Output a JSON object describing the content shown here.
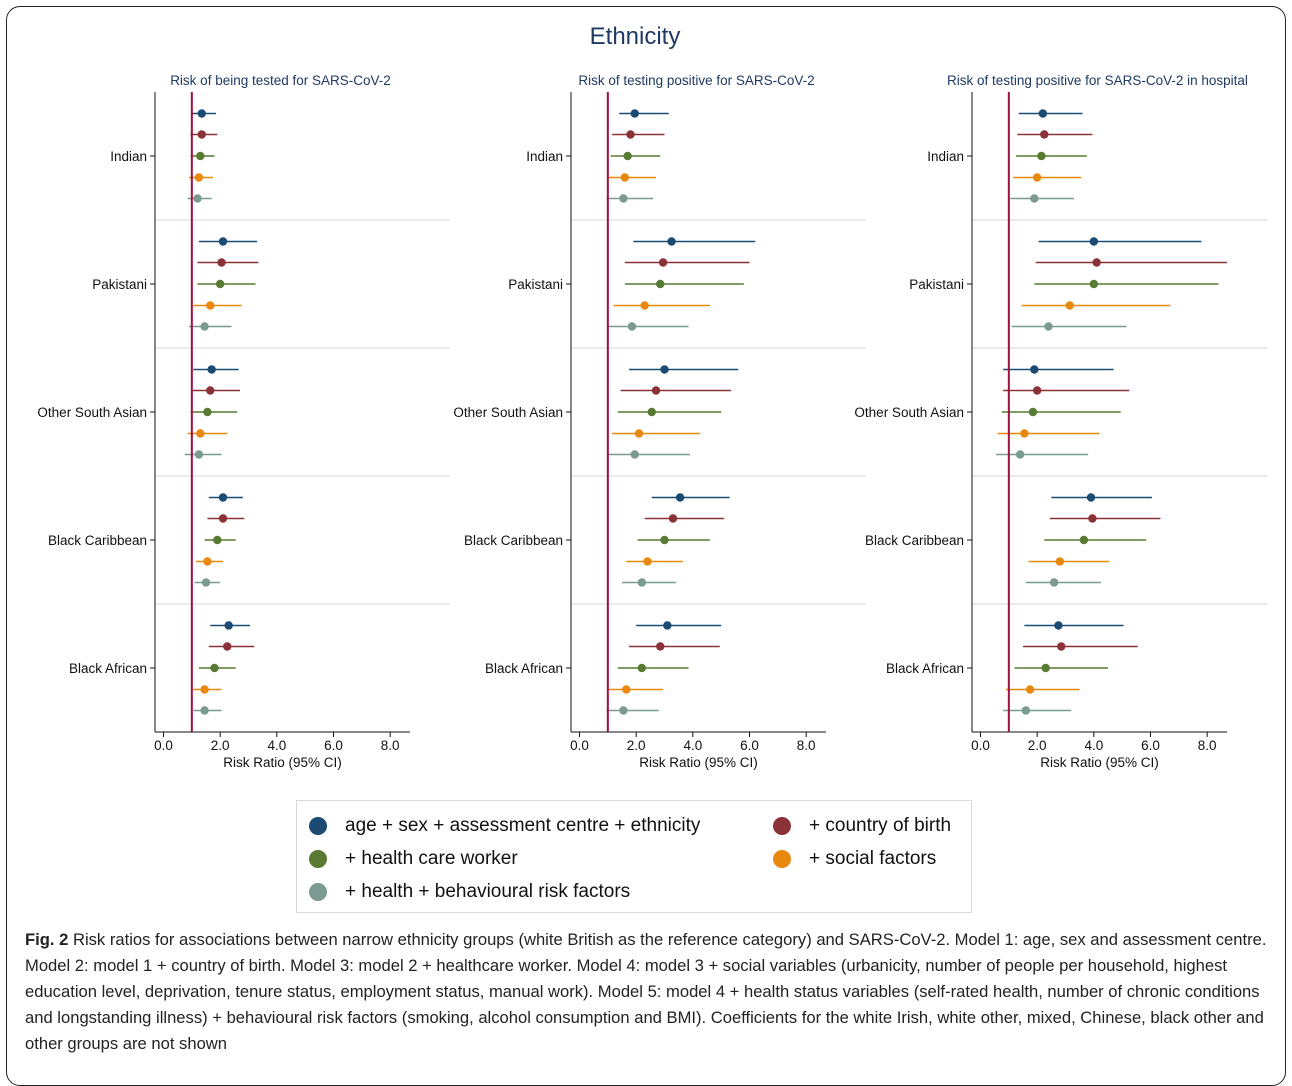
{
  "figure_title": "Ethnicity",
  "colors": {
    "model1": "#1b4a73",
    "model2": "#8b3238",
    "model3": "#587a32",
    "model4": "#e8890e",
    "model5": "#7b9a92",
    "reference_line": "#a0103f",
    "title_text": "#1f3a63"
  },
  "legend": {
    "model1": "age + sex + assessment centre + ethnicity",
    "model2": "+ country of birth",
    "model3": "+ health care worker",
    "model4": "+ social factors",
    "model5": "+ health + behavioural risk factors"
  },
  "caption": {
    "label": "Fig. 2",
    "text": "Risk ratios for associations between narrow ethnicity groups (white British as the reference category) and SARS-CoV-2. Model 1: age, sex and assessment centre. Model 2: model 1 + country of birth. Model 3: model 2 + healthcare worker. Model 4: model 3 + social variables (urbanicity, number of people per household, highest education level, deprivation, tenure status, employment status, manual work). Model 5: model 4 + health status variables (self-rated health, number of chronic conditions and longstanding illness) + behavioural risk factors (smoking, alcohol consumption and BMI). Coefficients for the white Irish, white other, mixed, Chinese, black other and other groups are not shown"
  },
  "chart_data": [
    {
      "type": "forest",
      "title": "Risk of being tested for SARS-CoV-2",
      "xlabel": "Risk Ratio (95% CI)",
      "xlim": [
        -0.3,
        8.7
      ],
      "xticks": [
        "0.0",
        "2.0",
        "4.0",
        "6.0",
        "8.0"
      ],
      "reference_line": 1.0,
      "categories": [
        "Indian",
        "Pakistani",
        "Other South Asian",
        "Black Caribbean",
        "Black African"
      ],
      "series": [
        {
          "name": "age + sex + assessment centre + ethnicity",
          "est": [
            1.35,
            2.1,
            1.7,
            2.1,
            2.3
          ],
          "lo": [
            1.0,
            1.25,
            1.05,
            1.6,
            1.65
          ],
          "hi": [
            1.85,
            3.3,
            2.65,
            2.8,
            3.05
          ]
        },
        {
          "name": "+ country of birth",
          "est": [
            1.35,
            2.05,
            1.65,
            2.1,
            2.25
          ],
          "lo": [
            0.95,
            1.2,
            1.0,
            1.55,
            1.6
          ],
          "hi": [
            1.9,
            3.35,
            2.7,
            2.85,
            3.2
          ]
        },
        {
          "name": "+ health care worker",
          "est": [
            1.3,
            2.0,
            1.55,
            1.9,
            1.8
          ],
          "lo": [
            0.95,
            1.2,
            0.95,
            1.45,
            1.25
          ],
          "hi": [
            1.8,
            3.25,
            2.6,
            2.55,
            2.55
          ]
        },
        {
          "name": "+ social factors",
          "est": [
            1.25,
            1.65,
            1.3,
            1.55,
            1.45
          ],
          "lo": [
            0.9,
            1.05,
            0.85,
            1.15,
            1.05
          ],
          "hi": [
            1.75,
            2.75,
            2.25,
            2.1,
            2.05
          ]
        },
        {
          "name": "+ health + behavioural risk factors",
          "est": [
            1.2,
            1.45,
            1.25,
            1.5,
            1.45
          ],
          "lo": [
            0.85,
            0.9,
            0.75,
            1.1,
            1.05
          ],
          "hi": [
            1.7,
            2.4,
            2.05,
            2.0,
            2.05
          ]
        }
      ]
    },
    {
      "type": "forest",
      "title": "Risk of testing positive for SARS-CoV-2",
      "xlabel": "Risk Ratio (95% CI)",
      "xlim": [
        -0.3,
        8.7
      ],
      "xticks": [
        "0.0",
        "2.0",
        "4.0",
        "6.0",
        "8.0"
      ],
      "reference_line": 1.0,
      "categories": [
        "Indian",
        "Pakistani",
        "Other South Asian",
        "Black Caribbean",
        "Black African"
      ],
      "series": [
        {
          "name": "age + sex + assessment centre + ethnicity",
          "est": [
            1.95,
            3.25,
            3.0,
            3.55,
            3.1
          ],
          "lo": [
            1.4,
            1.9,
            1.75,
            2.55,
            2.0
          ],
          "hi": [
            3.15,
            6.2,
            5.6,
            5.3,
            5.0
          ]
        },
        {
          "name": "+ country of birth",
          "est": [
            1.8,
            2.95,
            2.7,
            3.3,
            2.85
          ],
          "lo": [
            1.15,
            1.6,
            1.45,
            2.3,
            1.75
          ],
          "hi": [
            3.0,
            6.0,
            5.35,
            5.1,
            4.95
          ]
        },
        {
          "name": "+ health care worker",
          "est": [
            1.7,
            2.85,
            2.55,
            3.0,
            2.2
          ],
          "lo": [
            1.1,
            1.6,
            1.35,
            2.05,
            1.35
          ],
          "hi": [
            2.85,
            5.8,
            5.0,
            4.6,
            3.85
          ]
        },
        {
          "name": "+ social factors",
          "est": [
            1.6,
            2.3,
            2.1,
            2.4,
            1.65
          ],
          "lo": [
            1.0,
            1.2,
            1.15,
            1.65,
            1.0
          ],
          "hi": [
            2.7,
            4.6,
            4.25,
            3.65,
            2.95
          ]
        },
        {
          "name": "+ health + behavioural risk factors",
          "est": [
            1.55,
            1.85,
            1.95,
            2.2,
            1.55
          ],
          "lo": [
            0.95,
            1.0,
            1.0,
            1.5,
            0.95
          ],
          "hi": [
            2.6,
            3.85,
            3.9,
            3.4,
            2.8
          ]
        }
      ]
    },
    {
      "type": "forest",
      "title": "Risk of testing positive for SARS-CoV-2 in hospital",
      "xlabel": "Risk Ratio (95% CI)",
      "xlim": [
        -0.3,
        8.7
      ],
      "xticks": [
        "0.0",
        "2.0",
        "4.0",
        "6.0",
        "8.0"
      ],
      "reference_line": 1.0,
      "categories": [
        "Indian",
        "Pakistani",
        "Other South Asian",
        "Black Caribbean",
        "Black African"
      ],
      "series": [
        {
          "name": "age + sex + assessment centre + ethnicity",
          "est": [
            2.2,
            4.0,
            1.9,
            3.9,
            2.75
          ],
          "lo": [
            1.35,
            2.05,
            0.8,
            2.5,
            1.55
          ],
          "hi": [
            3.6,
            7.8,
            4.7,
            6.05,
            5.05
          ]
        },
        {
          "name": "+ country of birth",
          "est": [
            2.25,
            4.1,
            2.0,
            3.95,
            2.85
          ],
          "lo": [
            1.3,
            1.95,
            0.8,
            2.45,
            1.5
          ],
          "hi": [
            3.95,
            8.7,
            5.25,
            6.35,
            5.55
          ]
        },
        {
          "name": "+ health care worker",
          "est": [
            2.15,
            4.0,
            1.85,
            3.65,
            2.3
          ],
          "lo": [
            1.25,
            1.9,
            0.75,
            2.25,
            1.2
          ],
          "hi": [
            3.75,
            8.4,
            4.95,
            5.85,
            4.5
          ]
        },
        {
          "name": "+ social factors",
          "est": [
            2.0,
            3.15,
            1.55,
            2.8,
            1.75
          ],
          "lo": [
            1.15,
            1.45,
            0.6,
            1.7,
            0.9
          ],
          "hi": [
            3.55,
            6.7,
            4.2,
            4.55,
            3.5
          ]
        },
        {
          "name": "+ health + behavioural risk factors",
          "est": [
            1.9,
            2.4,
            1.4,
            2.6,
            1.6
          ],
          "lo": [
            1.05,
            1.1,
            0.55,
            1.6,
            0.8
          ],
          "hi": [
            3.3,
            5.15,
            3.8,
            4.25,
            3.2
          ]
        }
      ]
    }
  ]
}
